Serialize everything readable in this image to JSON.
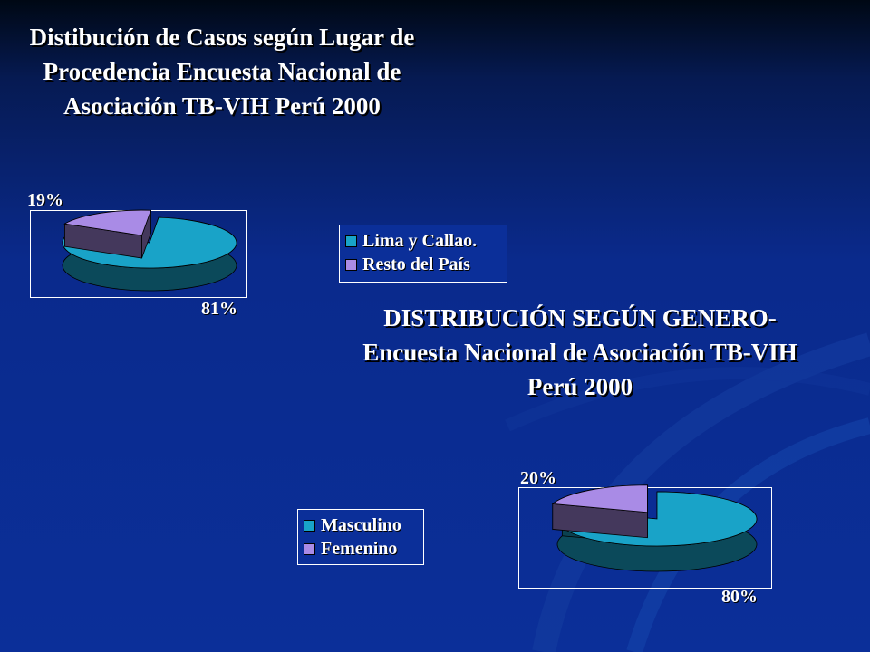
{
  "chart_data": [
    {
      "type": "pie",
      "title": "Distibución de Casos según Lugar de Procedencia Encuesta Nacional de Asociación TB-VIH Perú 2000",
      "labels": [
        "Lima y Callao.",
        "Resto del País"
      ],
      "values": [
        81,
        19
      ],
      "data_labels": [
        "81%",
        "19%"
      ],
      "colors": [
        "#19a3c8",
        "#a98be6"
      ],
      "legend_position": "right"
    },
    {
      "type": "pie",
      "title": "DISTRIBUCIÓN SEGÚN GENERO- Encuesta Nacional de Asociación TB-VIH Perú 2000",
      "labels": [
        "Masculino",
        "Femenino"
      ],
      "values": [
        80,
        20
      ],
      "data_labels": [
        "80%",
        "20%"
      ],
      "colors": [
        "#19a3c8",
        "#a98be6"
      ],
      "legend_position": "left"
    }
  ]
}
